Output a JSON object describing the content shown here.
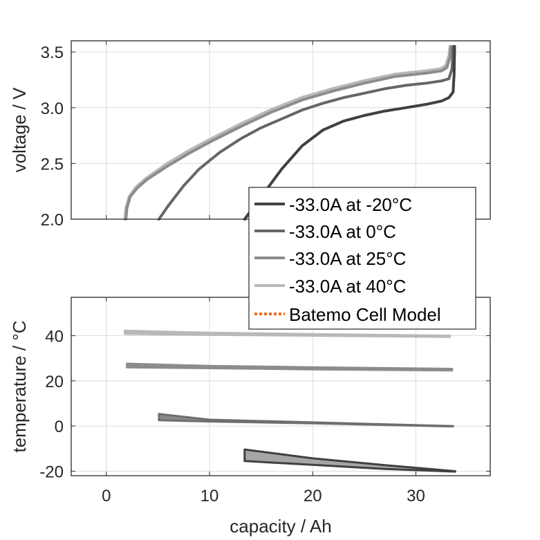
{
  "chart_data": [
    {
      "type": "line",
      "panel": "top",
      "title": "",
      "xlabel": "",
      "ylabel": "voltage / V",
      "xlim": [
        -3.4,
        37.2
      ],
      "ylim": [
        2.0,
        3.6
      ],
      "xticks": [
        0,
        10,
        20,
        30
      ],
      "yticks": [
        2.0,
        2.5,
        3.0,
        3.5
      ],
      "ytick_labels": [
        "2.0",
        "2.5",
        "3.0",
        "3.5"
      ],
      "grid": true,
      "series": [
        {
          "name": "-33.0A at -20°C",
          "color": "#404040",
          "x": [
            13.4,
            15,
            17,
            19,
            21,
            23,
            25,
            27,
            29,
            31,
            32.5,
            33.2,
            33.6,
            33.7,
            33.75
          ],
          "y": [
            2.0,
            2.2,
            2.45,
            2.66,
            2.8,
            2.88,
            2.93,
            2.97,
            3.0,
            3.03,
            3.06,
            3.09,
            3.14,
            3.3,
            3.55
          ]
        },
        {
          "name": "-33.0A at 0°C",
          "color": "#666666",
          "x": [
            5.1,
            6,
            7.5,
            9,
            11,
            13,
            15,
            17,
            19,
            21,
            23,
            25,
            27,
            29,
            31,
            32.5,
            33.2,
            33.5,
            33.6
          ],
          "y": [
            2.0,
            2.12,
            2.3,
            2.45,
            2.6,
            2.72,
            2.82,
            2.9,
            2.98,
            3.04,
            3.09,
            3.13,
            3.17,
            3.2,
            3.22,
            3.24,
            3.26,
            3.35,
            3.55
          ]
        },
        {
          "name": "-33.0A at 25°C",
          "color": "#8c8c8c",
          "x": [
            1.9,
            2.0,
            2.3,
            3,
            4,
            6,
            8,
            10,
            13,
            16,
            19,
            22,
            25,
            28,
            31,
            32.5,
            33.0,
            33.3,
            33.4
          ],
          "y": [
            2.0,
            2.1,
            2.2,
            2.28,
            2.36,
            2.48,
            2.59,
            2.69,
            2.83,
            2.96,
            3.07,
            3.15,
            3.22,
            3.28,
            3.31,
            3.33,
            3.36,
            3.45,
            3.55
          ]
        },
        {
          "name": "-33.0A at 40°C",
          "color": "#b8b8b8",
          "x": [
            1.8,
            1.9,
            2.2,
            2.9,
            3.9,
            5.9,
            7.9,
            9.9,
            12.9,
            15.9,
            18.9,
            21.9,
            24.9,
            27.9,
            30.9,
            32.4,
            32.9,
            33.2,
            33.3
          ],
          "y": [
            2.0,
            2.1,
            2.2,
            2.29,
            2.37,
            2.5,
            2.61,
            2.71,
            2.85,
            2.98,
            3.09,
            3.17,
            3.24,
            3.3,
            3.33,
            3.35,
            3.38,
            3.47,
            3.55
          ]
        }
      ],
      "legend": {
        "placement": "bottom-right",
        "entries": [
          {
            "label": "-33.0A at -20°C",
            "color": "#404040",
            "style": "solid"
          },
          {
            "label": "-33.0A at 0°C",
            "color": "#666666",
            "style": "solid"
          },
          {
            "label": "-33.0A at 25°C",
            "color": "#8c8c8c",
            "style": "solid"
          },
          {
            "label": "-33.0A at 40°C",
            "color": "#b8b8b8",
            "style": "solid"
          },
          {
            "label": "Batemo Cell Model",
            "color": "#f26b21",
            "style": "dotted"
          }
        ]
      }
    },
    {
      "type": "area",
      "panel": "bottom",
      "title": "",
      "xlabel": "capacity / Ah",
      "ylabel": "temperature / °C",
      "xlim": [
        -3.4,
        37.2
      ],
      "ylim": [
        -22,
        57
      ],
      "xticks": [
        0,
        10,
        20,
        30
      ],
      "xtick_labels": [
        "0",
        "10",
        "20",
        "30"
      ],
      "yticks": [
        -20,
        0,
        20,
        40
      ],
      "ytick_labels": [
        "-20",
        "0",
        "20",
        "40"
      ],
      "grid": true,
      "series": [
        {
          "name": "-33.0A at -20°C",
          "color": "#404040",
          "fill": "#a6a6a6",
          "x": [
            13.4,
            20,
            27,
            33.8
          ],
          "upper": [
            -10.4,
            -14.3,
            -17.3,
            -20.0
          ],
          "lower": [
            -15.5,
            -17.2,
            -19.0,
            -20.2
          ]
        },
        {
          "name": "-33.0A at 0°C",
          "color": "#6e6e6e",
          "fill": "#8a8a8a",
          "x": [
            5.1,
            10,
            20,
            33.6
          ],
          "upper": [
            5.3,
            2.8,
            1.6,
            0.0
          ],
          "lower": [
            2.6,
            2.0,
            1.2,
            -0.2
          ]
        },
        {
          "name": "-33.0A at 25°C",
          "color": "#8c8c8c",
          "fill": "#8c8c8c",
          "x": [
            2.0,
            10,
            20,
            33.5
          ],
          "upper": [
            27.6,
            26.6,
            26.0,
            25.3
          ],
          "lower": [
            26.0,
            25.6,
            25.1,
            24.6
          ]
        },
        {
          "name": "-33.0A at 40°C",
          "color": "#b8b8b8",
          "fill": "#b8b8b8",
          "x": [
            1.8,
            10,
            20,
            33.3
          ],
          "upper": [
            42.2,
            41.3,
            40.7,
            40.0
          ],
          "lower": [
            40.8,
            40.4,
            40.0,
            39.5
          ]
        }
      ]
    }
  ]
}
